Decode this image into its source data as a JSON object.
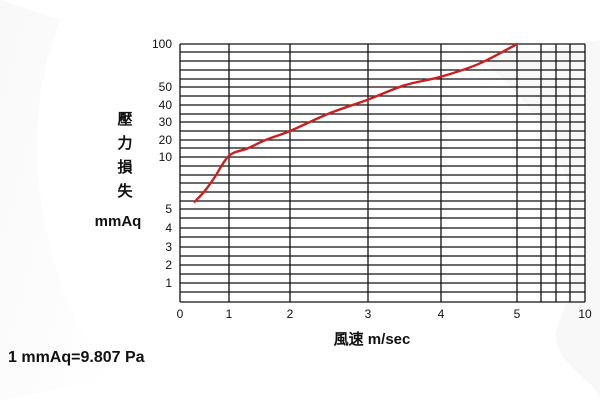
{
  "chart_data": {
    "type": "line",
    "ylabel": [
      "壓",
      "力",
      "損",
      "失"
    ],
    "yunit": "mmAq",
    "xlabel": "風速 m/sec",
    "x_ticks": [
      "0",
      "1",
      "2",
      "3",
      "4",
      "5",
      "10"
    ],
    "y_ticks": [
      "100",
      "50",
      "40",
      "30",
      "20",
      "10",
      "5",
      "4",
      "3",
      "2",
      "1"
    ],
    "series": [
      {
        "color": "#cc1f1f",
        "x": [
          0.3,
          0.5,
          0.7,
          1.0,
          1.3,
          1.6,
          2.0,
          2.5,
          3.0,
          3.5,
          4.0,
          4.5,
          5.0
        ],
        "y": [
          5.7,
          6.7,
          8.0,
          10.7,
          15,
          20,
          25,
          35,
          43,
          52,
          62,
          77,
          100
        ]
      }
    ],
    "grid": true
  },
  "footnote": "1 mmAq=9.807 Pa",
  "colors": {
    "grid": "#111111",
    "background": "#ffffff"
  }
}
